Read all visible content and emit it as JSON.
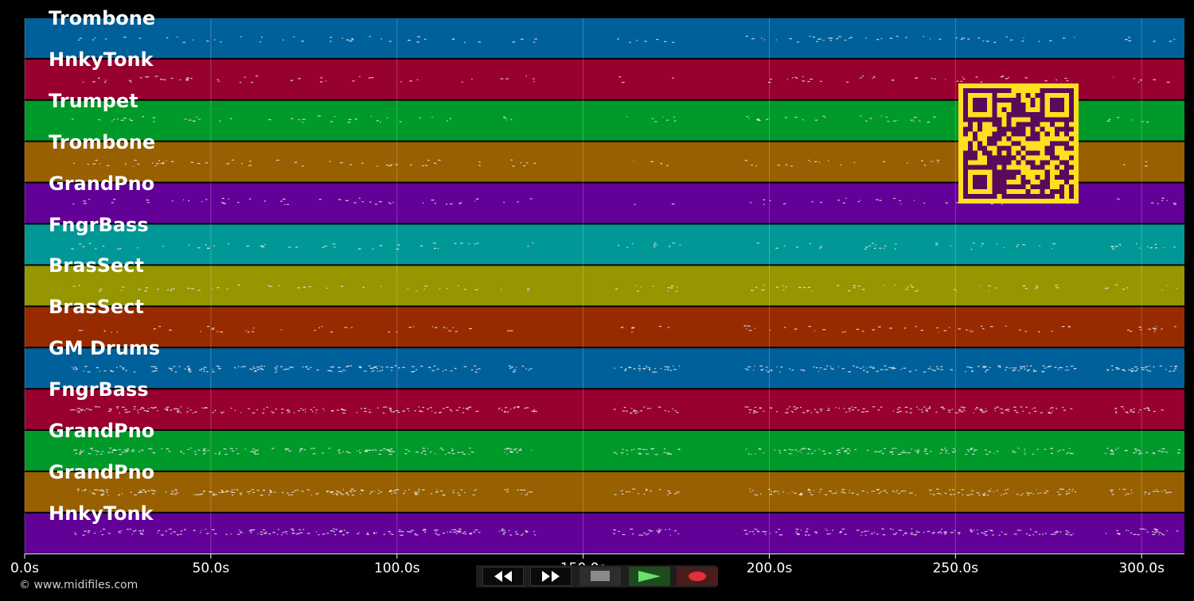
{
  "tracks": [
    {
      "name": "Trombone",
      "color": "#00609a"
    },
    {
      "name": "HnkyTonk",
      "color": "#980030"
    },
    {
      "name": "Trumpet",
      "color": "#009a2a"
    },
    {
      "name": "Trombone",
      "color": "#986000"
    },
    {
      "name": "GrandPno",
      "color": "#620098"
    },
    {
      "name": "FngrBass",
      "color": "#009896"
    },
    {
      "name": "BrasSect",
      "color": "#969600"
    },
    {
      "name": "BrasSect",
      "color": "#982a00"
    },
    {
      "name": "GM Drums",
      "color": "#00609a"
    },
    {
      "name": "FngrBass",
      "color": "#980030"
    },
    {
      "name": "GrandPno",
      "color": "#009a2a"
    },
    {
      "name": "GrandPno",
      "color": "#986000"
    },
    {
      "name": "HnkyTonk",
      "color": "#620098"
    }
  ],
  "timeline": {
    "ticks": [
      "0.0s",
      "50.0s",
      "100.0s",
      "150.0s",
      "200.0s",
      "250.0s",
      "300.0s"
    ],
    "tick_values": [
      0,
      50,
      100,
      150,
      200,
      250,
      300
    ],
    "max_seconds": 311.5
  },
  "transport": {
    "rewind_icon": "rewind-icon",
    "fast_forward_icon": "fast-forward-icon",
    "stop_icon": "stop-icon",
    "play_icon": "play-icon",
    "record_icon": "record-icon"
  },
  "qr": {
    "fg": "#ffe020",
    "bg": "#5a0a5a"
  },
  "credit": "© www.midifiles.com"
}
